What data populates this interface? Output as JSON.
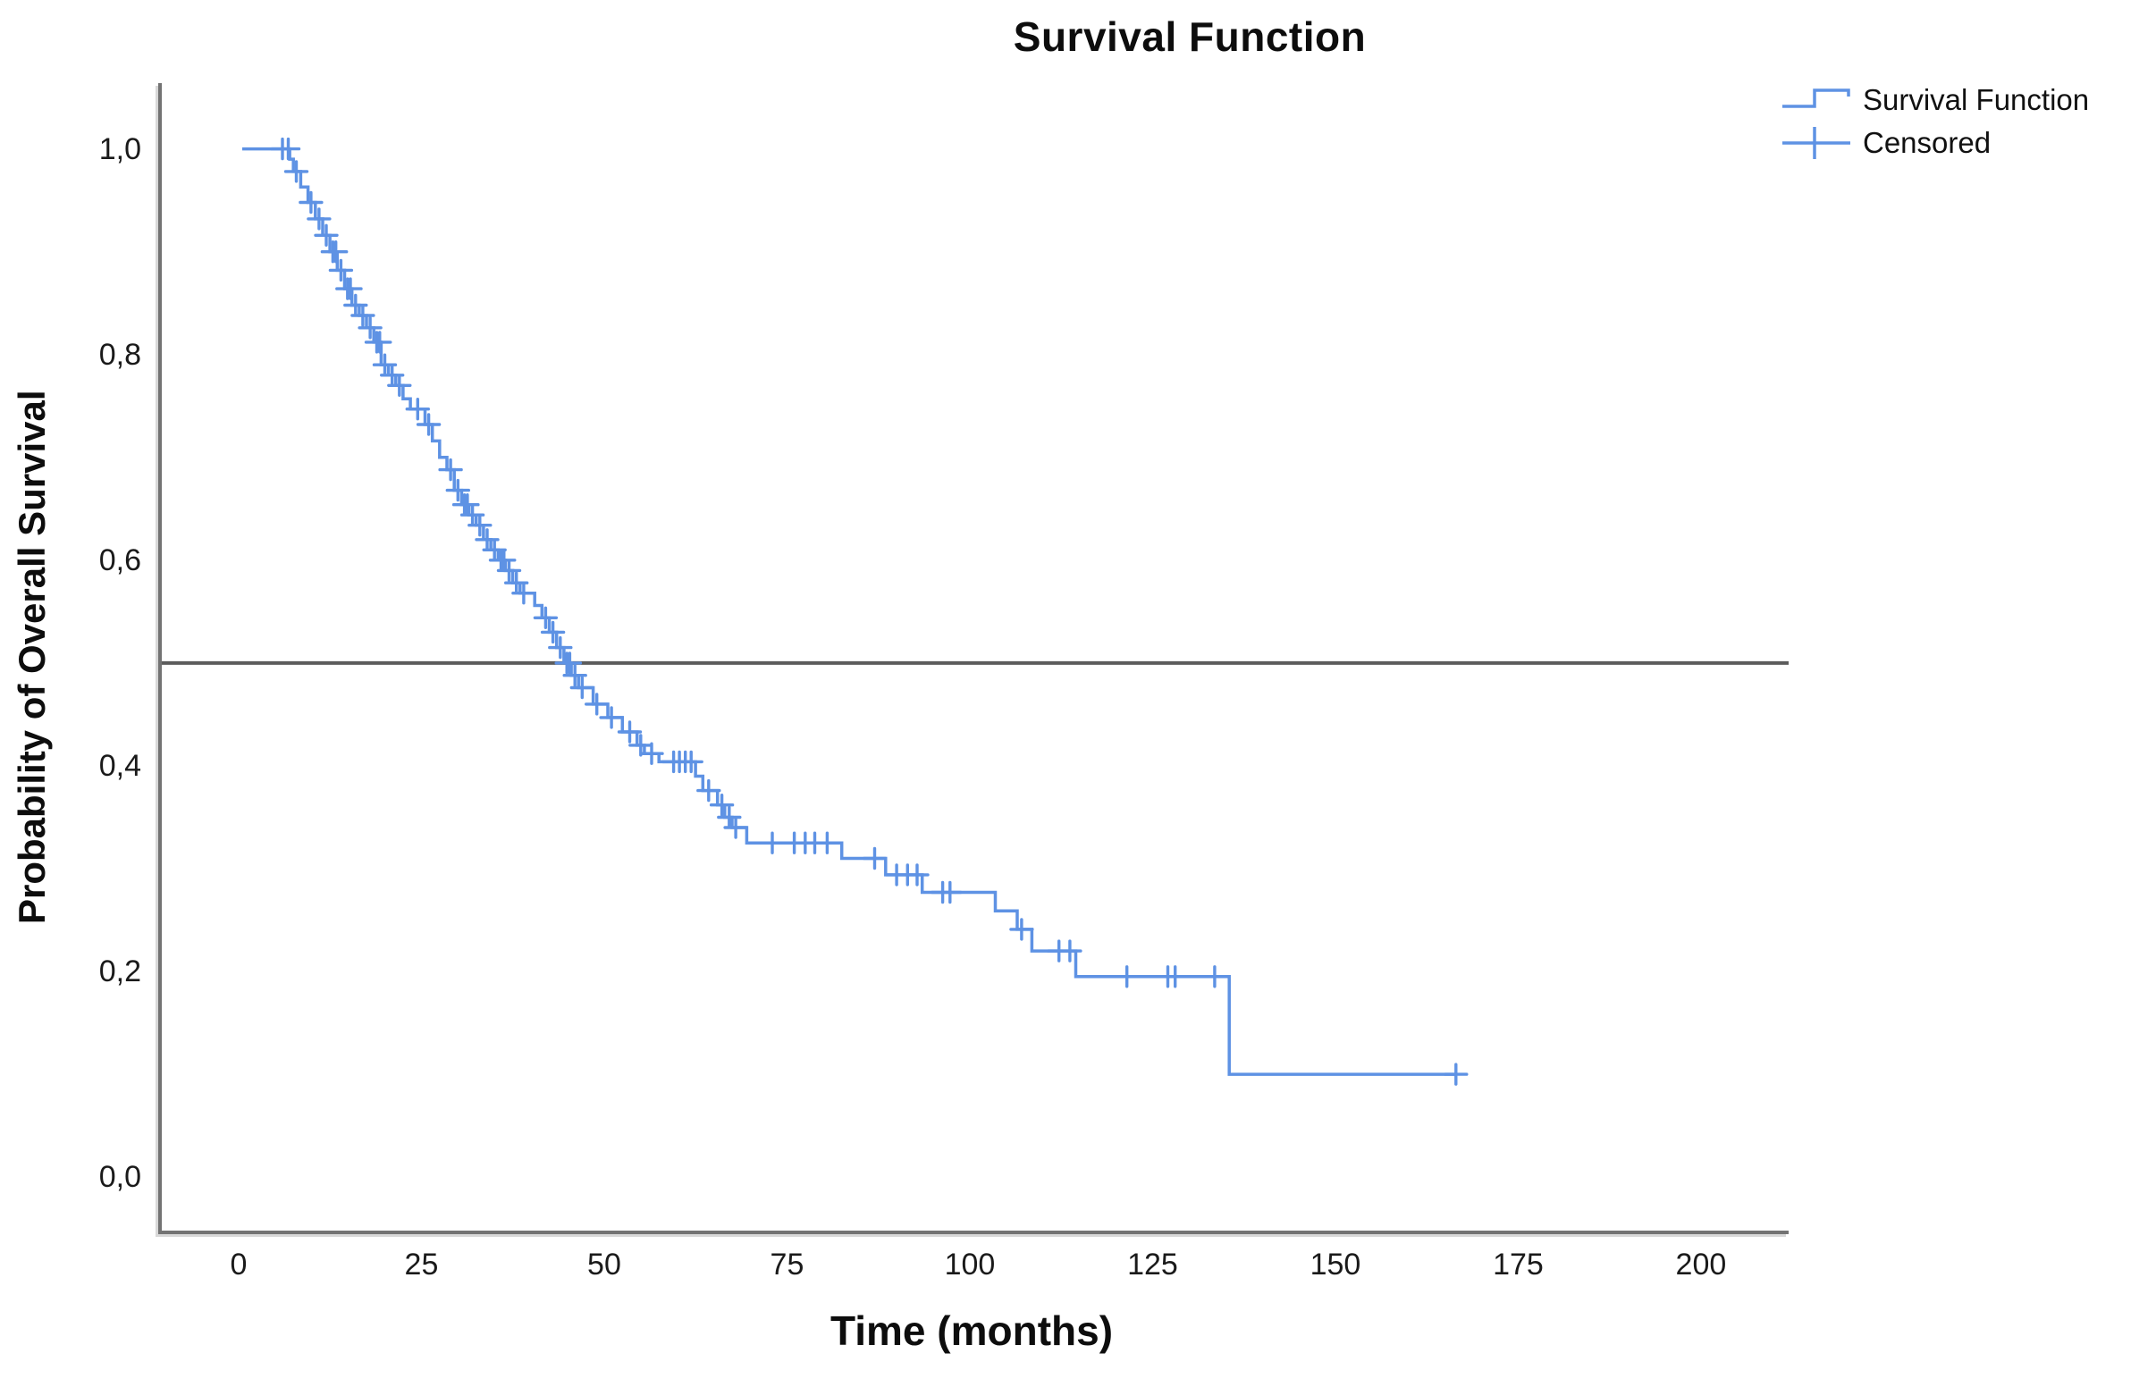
{
  "page": {
    "background": "#ffffff"
  },
  "chart_data": {
    "type": "line",
    "subtype": "kaplan-meier-step",
    "title": "Survival Function",
    "xlabel": "Time (months)",
    "ylabel": "Probability of Overall Survival",
    "xlim": [
      -11,
      211.5
    ],
    "ylim": [
      -0.052,
      1.064
    ],
    "grid": false,
    "decimal_separator": ",",
    "x_ticks": [
      {
        "v": 0,
        "label": "0"
      },
      {
        "v": 25,
        "label": "25"
      },
      {
        "v": 50,
        "label": "50"
      },
      {
        "v": 75,
        "label": "75"
      },
      {
        "v": 100,
        "label": "100"
      },
      {
        "v": 125,
        "label": "125"
      },
      {
        "v": 150,
        "label": "150"
      },
      {
        "v": 175,
        "label": "175"
      },
      {
        "v": 200,
        "label": "200"
      }
    ],
    "y_ticks": [
      {
        "v": 0.0,
        "label": "0,0"
      },
      {
        "v": 0.2,
        "label": "0,2"
      },
      {
        "v": 0.4,
        "label": "0,4"
      },
      {
        "v": 0.6,
        "label": "0,6"
      },
      {
        "v": 0.8,
        "label": "0,8"
      },
      {
        "v": 1.0,
        "label": "1,0"
      }
    ],
    "reference_line_y": 0.5,
    "median_survival_months": 44,
    "legend": {
      "position": "top-right",
      "entries": [
        {
          "label": "Survival Function",
          "marker": "step-line"
        },
        {
          "label": "Censored",
          "marker": "plus"
        }
      ]
    },
    "colors": {
      "curve": "#5e92e4",
      "reference_line": "#5c5c5c",
      "axis": "#737373",
      "text": "#000000"
    },
    "series": [
      {
        "name": "Survival Function",
        "start": [
          0,
          1.0
        ],
        "end_time": 166,
        "steps": [
          [
            6.5,
            0.99
          ],
          [
            7,
            0.978
          ],
          [
            8,
            0.963
          ],
          [
            9,
            0.948
          ],
          [
            10,
            0.932
          ],
          [
            11,
            0.916
          ],
          [
            12,
            0.9
          ],
          [
            13,
            0.882
          ],
          [
            14,
            0.864
          ],
          [
            15,
            0.848
          ],
          [
            16,
            0.838
          ],
          [
            17,
            0.826
          ],
          [
            18,
            0.812
          ],
          [
            19,
            0.79
          ],
          [
            20,
            0.78
          ],
          [
            21,
            0.77
          ],
          [
            22,
            0.757
          ],
          [
            23,
            0.747
          ],
          [
            25,
            0.732
          ],
          [
            26,
            0.716
          ],
          [
            27,
            0.7
          ],
          [
            28,
            0.688
          ],
          [
            29,
            0.668
          ],
          [
            30,
            0.654
          ],
          [
            31,
            0.644
          ],
          [
            32,
            0.634
          ],
          [
            33,
            0.62
          ],
          [
            34,
            0.61
          ],
          [
            35,
            0.6
          ],
          [
            36,
            0.59
          ],
          [
            37,
            0.578
          ],
          [
            38,
            0.568
          ],
          [
            40,
            0.556
          ],
          [
            41,
            0.544
          ],
          [
            42,
            0.53
          ],
          [
            43,
            0.515
          ],
          [
            44,
            0.5
          ],
          [
            45,
            0.488
          ],
          [
            46,
            0.476
          ],
          [
            48,
            0.46
          ],
          [
            50,
            0.447
          ],
          [
            52,
            0.433
          ],
          [
            54,
            0.42
          ],
          [
            55,
            0.412
          ],
          [
            57,
            0.404
          ],
          [
            62,
            0.39
          ],
          [
            63,
            0.376
          ],
          [
            65,
            0.362
          ],
          [
            66,
            0.35
          ],
          [
            67,
            0.34
          ],
          [
            69,
            0.325
          ],
          [
            82,
            0.31
          ],
          [
            88,
            0.294
          ],
          [
            93,
            0.277
          ],
          [
            103,
            0.259
          ],
          [
            106,
            0.241
          ],
          [
            108,
            0.22
          ],
          [
            114,
            0.195
          ],
          [
            135,
            0.1
          ]
        ]
      }
    ],
    "censored": [
      [
        5.5,
        1.0
      ],
      [
        6.3,
        1.0
      ],
      [
        7.4,
        0.978
      ],
      [
        9.4,
        0.948
      ],
      [
        10.5,
        0.932
      ],
      [
        11.5,
        0.916
      ],
      [
        12.4,
        0.9
      ],
      [
        12.8,
        0.9
      ],
      [
        13.5,
        0.882
      ],
      [
        14.4,
        0.864
      ],
      [
        14.8,
        0.864
      ],
      [
        15.5,
        0.848
      ],
      [
        16.5,
        0.838
      ],
      [
        17.5,
        0.826
      ],
      [
        18.4,
        0.812
      ],
      [
        18.8,
        0.812
      ],
      [
        19.5,
        0.79
      ],
      [
        20.5,
        0.78
      ],
      [
        21.5,
        0.77
      ],
      [
        24,
        0.747
      ],
      [
        25.5,
        0.732
      ],
      [
        28.5,
        0.688
      ],
      [
        29.5,
        0.668
      ],
      [
        30.4,
        0.654
      ],
      [
        30.8,
        0.654
      ],
      [
        31.5,
        0.644
      ],
      [
        32.5,
        0.634
      ],
      [
        33.5,
        0.62
      ],
      [
        34.5,
        0.61
      ],
      [
        35.4,
        0.6
      ],
      [
        35.8,
        0.6
      ],
      [
        36.5,
        0.59
      ],
      [
        37.5,
        0.578
      ],
      [
        38.5,
        0.568
      ],
      [
        41.5,
        0.544
      ],
      [
        42.5,
        0.53
      ],
      [
        43.5,
        0.515
      ],
      [
        44.4,
        0.5
      ],
      [
        44.8,
        0.5
      ],
      [
        45.5,
        0.488
      ],
      [
        46.5,
        0.476
      ],
      [
        48.5,
        0.46
      ],
      [
        50.5,
        0.447
      ],
      [
        53,
        0.433
      ],
      [
        54.5,
        0.42
      ],
      [
        56,
        0.412
      ],
      [
        59,
        0.404
      ],
      [
        59.8,
        0.404
      ],
      [
        60.6,
        0.404
      ],
      [
        61.4,
        0.404
      ],
      [
        63.8,
        0.376
      ],
      [
        65.6,
        0.362
      ],
      [
        66.6,
        0.35
      ],
      [
        67.5,
        0.34
      ],
      [
        72.5,
        0.325
      ],
      [
        75.5,
        0.325
      ],
      [
        77,
        0.325
      ],
      [
        78.3,
        0.325
      ],
      [
        80,
        0.325
      ],
      [
        86.5,
        0.31
      ],
      [
        89.5,
        0.294
      ],
      [
        91,
        0.294
      ],
      [
        92.3,
        0.294
      ],
      [
        95.8,
        0.277
      ],
      [
        96.8,
        0.277
      ],
      [
        106.6,
        0.241
      ],
      [
        111.7,
        0.22
      ],
      [
        113.2,
        0.22
      ],
      [
        121,
        0.195
      ],
      [
        126.6,
        0.195
      ],
      [
        127.6,
        0.195
      ],
      [
        133,
        0.195
      ],
      [
        166,
        0.1
      ]
    ]
  }
}
